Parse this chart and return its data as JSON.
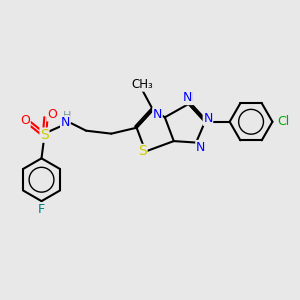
{
  "background_color": "#e8e8e8",
  "atom_colors": {
    "N": "#0000ff",
    "S": "#cccc00",
    "O": "#ff0000",
    "F": "#008080",
    "Cl": "#00aa00",
    "C": "#000000",
    "H": "#7a9a9a"
  },
  "bond_color": "#000000",
  "bond_width": 1.5,
  "font_size_atom": 9
}
